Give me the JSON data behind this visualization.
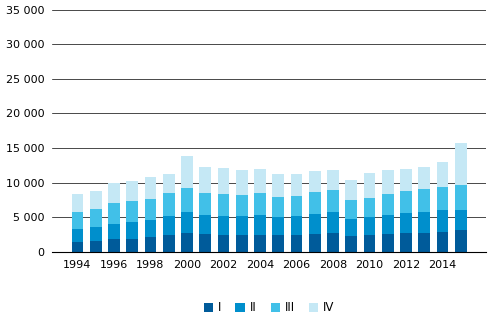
{
  "years": [
    1994,
    1995,
    1996,
    1997,
    1998,
    1999,
    2000,
    2001,
    2002,
    2003,
    2004,
    2005,
    2006,
    2007,
    2008,
    2009,
    2010,
    2011,
    2012,
    2013,
    2014,
    2015
  ],
  "Q1": [
    1500,
    1600,
    1800,
    1900,
    2100,
    2400,
    2800,
    2600,
    2500,
    2500,
    2500,
    2500,
    2500,
    2600,
    2800,
    2300,
    2400,
    2600,
    2700,
    2800,
    2900,
    3100
  ],
  "Q2": [
    1800,
    2000,
    2300,
    2400,
    2500,
    2800,
    3000,
    2800,
    2700,
    2700,
    2800,
    2600,
    2700,
    2900,
    2900,
    2500,
    2600,
    2800,
    2900,
    3000,
    3100,
    3000
  ],
  "Q3": [
    2500,
    2600,
    3000,
    3000,
    3100,
    3300,
    3400,
    3100,
    3100,
    3000,
    3200,
    2900,
    2900,
    3100,
    3200,
    2700,
    2800,
    2900,
    3200,
    3300,
    3400,
    3600
  ],
  "Q4": [
    2600,
    2600,
    2900,
    3000,
    3100,
    2800,
    4700,
    3700,
    3800,
    3700,
    3500,
    3300,
    3200,
    3100,
    2900,
    2900,
    3600,
    3500,
    3200,
    3200,
    3600,
    6100
  ],
  "colors": [
    "#005B9A",
    "#008FCC",
    "#41C0E8",
    "#C5E8F5"
  ],
  "ylim": [
    0,
    35000
  ],
  "yticks": [
    0,
    5000,
    10000,
    15000,
    20000,
    25000,
    30000,
    35000
  ],
  "legend_labels": [
    "I",
    "II",
    "III",
    "IV"
  ],
  "bar_width": 0.65,
  "background_color": "#ffffff"
}
